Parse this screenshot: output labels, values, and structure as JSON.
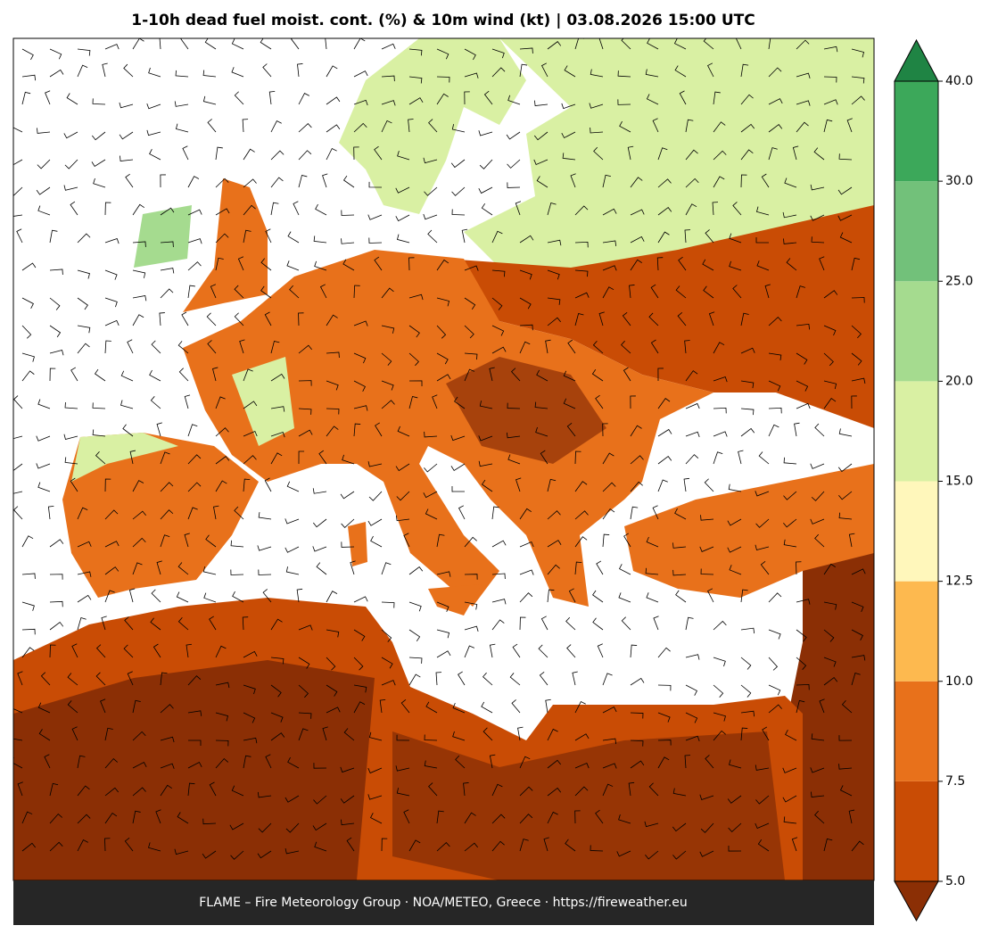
{
  "chart_data": {
    "type": "map",
    "title": "1-10h dead fuel moist. cont. (%) & 10m wind (kt)  |  03.08.2026 15:00 UTC",
    "footer": "FLAME – Fire Meteorology Group · NOA/METEO, Greece · https://fireweather.eu",
    "colorbar": {
      "ticks": [
        {
          "value": 5,
          "label": "5.0"
        },
        7.5,
        {
          "value": 10,
          "label": "10.0"
        },
        12.5,
        {
          "value": 15,
          "label": "15.0"
        },
        {
          "value": 20,
          "label": "20.0"
        },
        {
          "value": 25,
          "label": "25.0"
        },
        {
          "value": 30,
          "label": "30.0"
        },
        {
          "value": 40,
          "label": "40.0"
        }
      ],
      "colors": [
        "#c94c05",
        "#e8711b",
        "#fdb94f",
        "#fff7bb",
        "#d9f0a3",
        "#a5db8f",
        "#72c17a",
        "#3ca85a"
      ],
      "under_color": "#8b2f05",
      "over_color": "#1f8444"
    }
  }
}
